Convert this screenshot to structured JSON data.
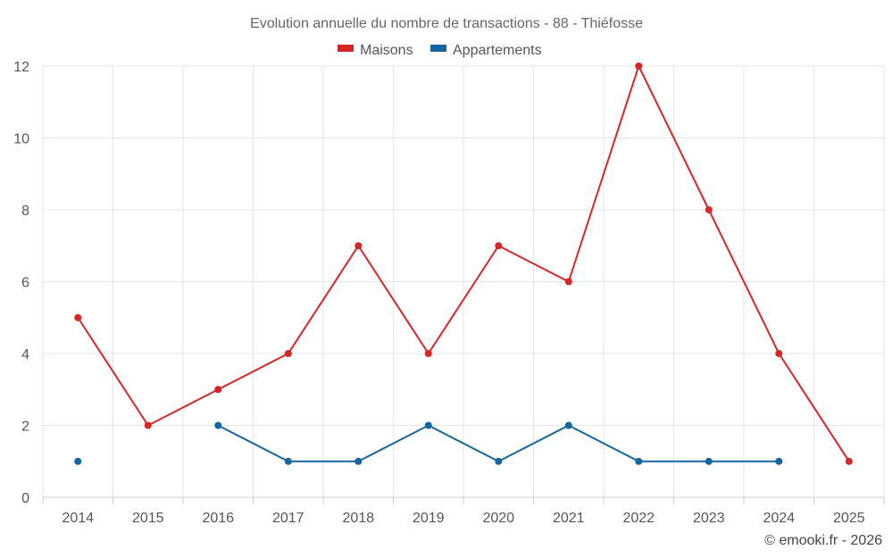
{
  "chart_data": {
    "type": "line",
    "title": "Evolution annuelle du nombre de transactions - 88 - Thiéfosse",
    "categories": [
      "2014",
      "2015",
      "2016",
      "2017",
      "2018",
      "2019",
      "2020",
      "2021",
      "2022",
      "2023",
      "2024",
      "2025"
    ],
    "series": [
      {
        "name": "Maisons",
        "color": "#d62728",
        "values": [
          5,
          2,
          3,
          4,
          7,
          4,
          7,
          6,
          12,
          8,
          4,
          1
        ]
      },
      {
        "name": "Appartements",
        "color": "#1565a0",
        "values": [
          1,
          null,
          2,
          1,
          1,
          2,
          1,
          2,
          1,
          1,
          1,
          null
        ]
      }
    ],
    "y_ticks": [
      "0",
      "2",
      "4",
      "6",
      "8",
      "10",
      "12"
    ],
    "ylim": [
      0,
      12
    ],
    "xlabel": "",
    "ylabel": "",
    "grid": true,
    "legend_position": "top-center",
    "credit": "© emooki.fr - 2026"
  }
}
